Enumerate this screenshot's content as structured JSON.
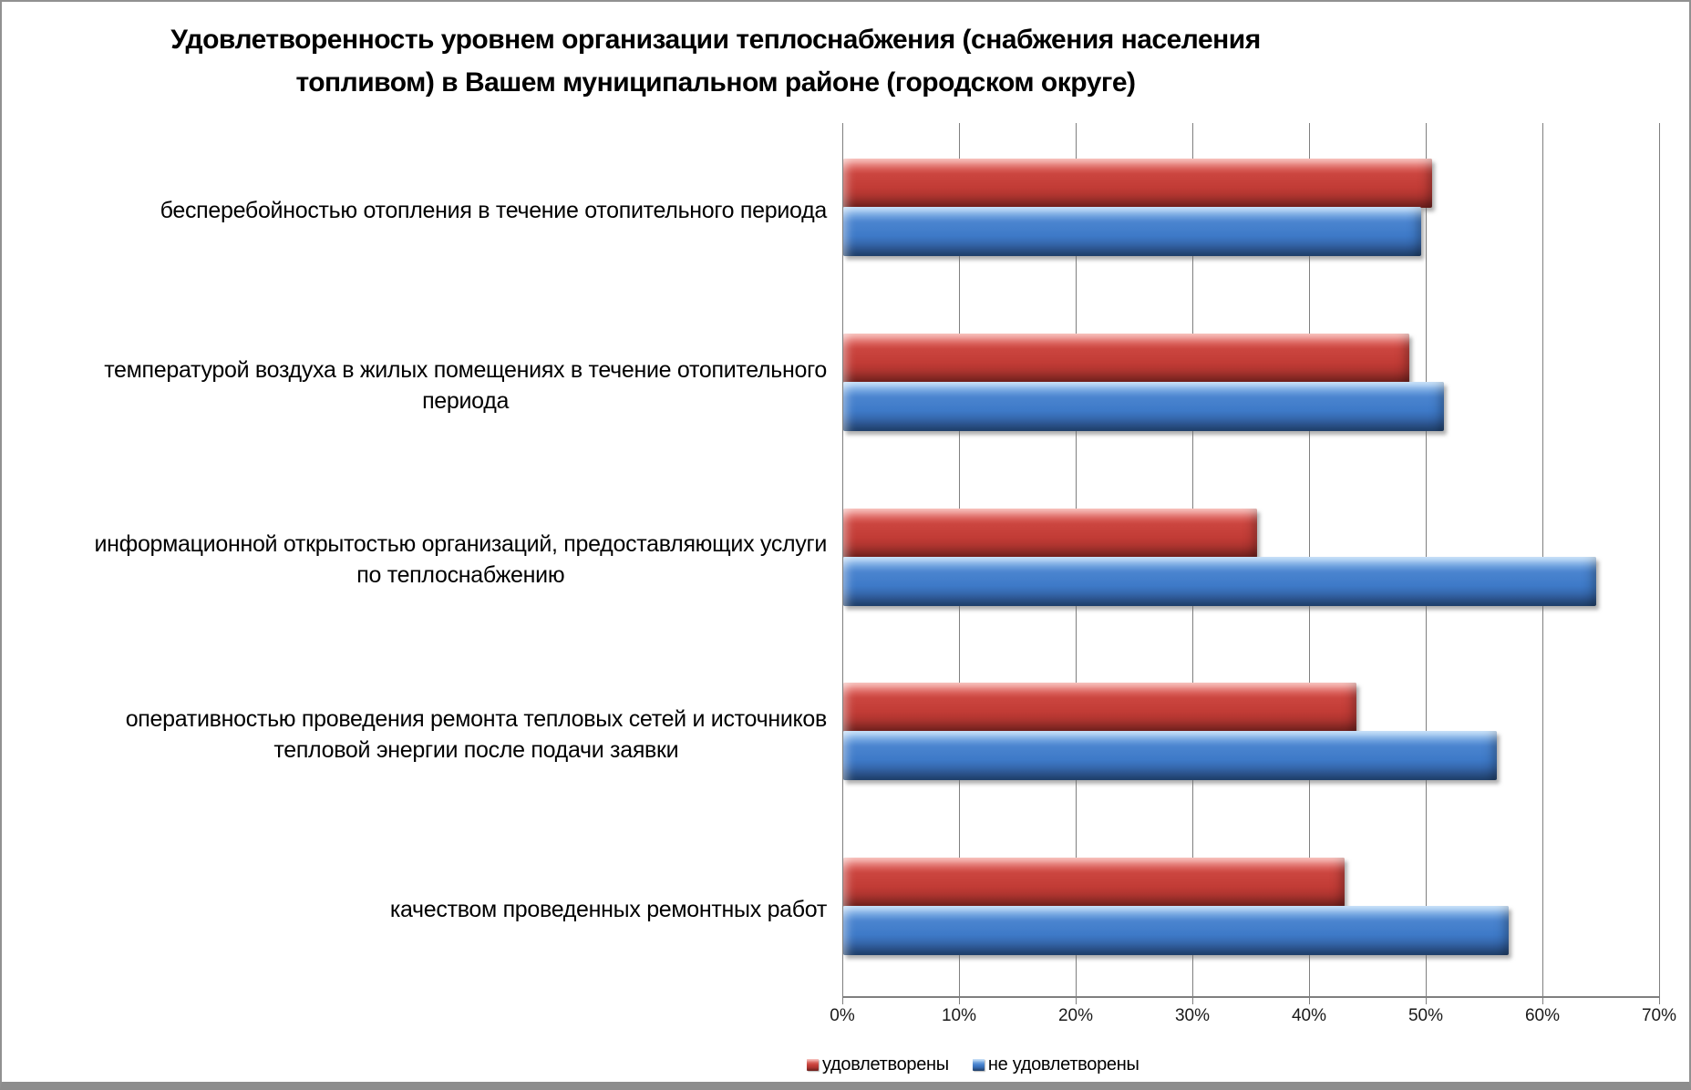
{
  "window": {
    "background": "#FFFFFF",
    "frame_border_color": "#919191"
  },
  "chart_data": {
    "type": "bar",
    "orientation": "horizontal",
    "title": "Удовлетворенность уровнем организации теплоснабжения (снабжения населения топливом) в Вашем муниципальном районе (городском округе)",
    "title_lines": [
      "Удовлетворенность уровнем организации теплоснабжения (снабжения населения",
      "топливом) в Вашем муниципальном районе (городском округе)"
    ],
    "categories": [
      "бесперебойностью  отопления в течение отопительного периода",
      "температурой  воздуха в жилых помещениях в течение отопительного периода",
      "информационной открытостью  организаций, предоставляющих услуги по теплоснабжению",
      "оперативностью проведения  ремонта тепловых сетей и источников тепловой энергии после подачи заявки",
      "качеством проведенных ремонтных работ"
    ],
    "category_lines": [
      [
        "бесперебойностью  отопления в течение отопительного периода"
      ],
      [
        "температурой  воздуха в жилых помещениях в течение отопительного",
        "периода"
      ],
      [
        "информационной открытостью  организаций, предоставляющих услуги",
        "по теплоснабжению"
      ],
      [
        "оперативностью проведения  ремонта тепловых сетей и источников",
        "тепловой энергии после подачи заявки"
      ],
      [
        "качеством проведенных ремонтных работ"
      ]
    ],
    "series": [
      {
        "key": "satisfied",
        "name": "удовлетворены",
        "color": "#C23C36",
        "values": [
          50.5,
          48.5,
          35.5,
          44,
          43
        ]
      },
      {
        "key": "unsatisfied",
        "name": "не удовлетворены",
        "color": "#3E7AC8",
        "values": [
          49.5,
          51.5,
          64.5,
          56,
          57
        ]
      }
    ],
    "xlabel": "",
    "ylabel": "",
    "x_ticks": [
      "0%",
      "10%",
      "20%",
      "30%",
      "40%",
      "50%",
      "60%",
      "70%"
    ],
    "xlim": [
      0,
      70
    ],
    "grid": "vertical",
    "gridline_color": "#7F7F7F",
    "legend_position": "bottom"
  }
}
